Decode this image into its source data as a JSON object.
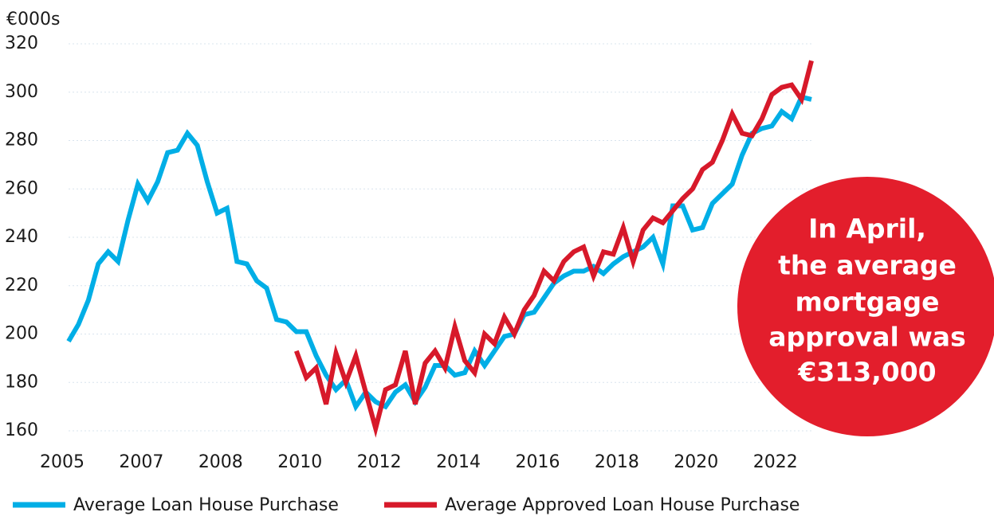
{
  "chart_data": {
    "type": "line",
    "y_unit": "€000s",
    "categories": [
      "2005",
      null,
      null,
      null,
      null,
      null,
      null,
      null,
      "2007",
      null,
      null,
      null,
      null,
      null,
      null,
      null,
      "2008",
      null,
      null,
      null,
      null,
      null,
      null,
      null,
      "2010",
      null,
      null,
      null,
      null,
      null,
      null,
      null,
      "2012",
      null,
      null,
      null,
      null,
      null,
      null,
      null,
      "2014",
      null,
      null,
      null,
      null,
      null,
      null,
      null,
      "2016",
      null,
      null,
      null,
      null,
      null,
      null,
      null,
      "2018",
      null,
      null,
      null,
      null,
      null,
      null,
      null,
      "2020",
      null,
      null,
      null,
      null,
      null,
      null,
      null,
      "2022",
      null,
      null,
      null
    ],
    "series": [
      {
        "name": "Average Loan House Purchase",
        "color": "#00aee6",
        "values": [
          197,
          204,
          214,
          229,
          234,
          230,
          247,
          262,
          255,
          263,
          275,
          276,
          283,
          278,
          263,
          250,
          252,
          230,
          229,
          222,
          219,
          206,
          205,
          201,
          201,
          191,
          183,
          177,
          181,
          170,
          176,
          172,
          170,
          176,
          179,
          172,
          178,
          187,
          187,
          183,
          184,
          193,
          187,
          193,
          199,
          200,
          208,
          209,
          215,
          221,
          224,
          226,
          226,
          228,
          225,
          229,
          232,
          234,
          236,
          240,
          229,
          253,
          253,
          243,
          244,
          254,
          258,
          262,
          274,
          283,
          285,
          286,
          292,
          289,
          298,
          297
        ]
      },
      {
        "name": "Average Approved Loan House Purchase",
        "color": "#d7192a",
        "values": [
          null,
          null,
          null,
          null,
          null,
          null,
          null,
          null,
          null,
          null,
          null,
          null,
          null,
          null,
          null,
          null,
          null,
          null,
          null,
          null,
          null,
          null,
          null,
          193,
          182,
          186,
          171,
          192,
          180,
          191,
          176,
          161,
          177,
          179,
          193,
          171,
          188,
          193,
          186,
          203,
          189,
          184,
          200,
          196,
          207,
          200,
          210,
          216,
          226,
          222,
          230,
          234,
          236,
          224,
          234,
          233,
          244,
          230,
          243,
          248,
          246,
          251,
          256,
          260,
          268,
          271,
          280,
          291,
          283,
          282,
          289,
          299,
          302,
          303,
          297,
          313
        ]
      }
    ],
    "ylim": [
      160,
      320
    ],
    "yticks": [
      160,
      180,
      200,
      220,
      240,
      260,
      280,
      300,
      320
    ],
    "grid": true,
    "annotation": [
      "In April,",
      "the average",
      "mortgage",
      "approval was",
      "€313,000"
    ],
    "annotation_color": "#e31e2c"
  }
}
